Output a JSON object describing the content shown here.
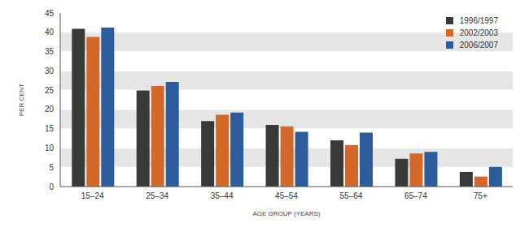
{
  "chart_data": {
    "type": "bar",
    "x_label": "AGE GROUP (YEARS)",
    "y_label": "PER CENT",
    "categories": [
      "15–24",
      "25–34",
      "35–44",
      "45–54",
      "55–64",
      "65–74",
      "75+"
    ],
    "series": [
      {
        "name": "1996/1997",
        "color": "#393939",
        "values": [
          40.9,
          24.9,
          17.0,
          16.0,
          12.0,
          7.2,
          3.8
        ]
      },
      {
        "name": "2002/2003",
        "color": "#d2692a",
        "values": [
          38.8,
          26.1,
          18.6,
          15.6,
          10.8,
          8.6,
          2.6
        ]
      },
      {
        "name": "2006/2007",
        "color": "#2d5c9c",
        "values": [
          41.2,
          27.1,
          19.2,
          14.2,
          14.0,
          9.0,
          5.1
        ]
      }
    ],
    "ylim": [
      0,
      45
    ],
    "yticks": [
      0,
      5,
      10,
      15,
      20,
      25,
      30,
      35,
      40,
      45
    ],
    "grid": true,
    "legend": "top-right"
  }
}
